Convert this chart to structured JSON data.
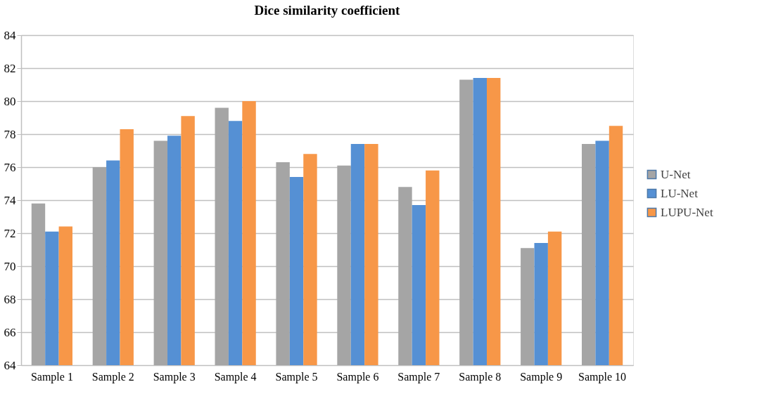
{
  "chart_data": {
    "type": "bar",
    "title": "Dice similarity coefficient",
    "categories": [
      "Sample 1",
      "Sample 2",
      "Sample 3",
      "Sample 4",
      "Sample 5",
      "Sample 6",
      "Sample 7",
      "Sample 8",
      "Sample 9",
      "Sample 10"
    ],
    "series": [
      {
        "name": "U-Net",
        "color": "#a5a5a5",
        "values": [
          73.8,
          76.0,
          77.6,
          79.6,
          76.3,
          76.1,
          74.8,
          81.3,
          71.1,
          77.4
        ]
      },
      {
        "name": "LU-Net",
        "color": "#5590d4",
        "values": [
          72.1,
          76.4,
          77.9,
          78.8,
          75.4,
          77.4,
          73.7,
          81.4,
          71.4,
          77.6
        ]
      },
      {
        "name": "LUPU-Net",
        "color": "#f79748",
        "values": [
          72.4,
          78.3,
          79.1,
          80.0,
          76.8,
          77.4,
          75.8,
          81.4,
          72.1,
          78.5
        ]
      }
    ],
    "ylim": [
      64,
      84
    ],
    "yticks": [
      64,
      66,
      68,
      70,
      72,
      74,
      76,
      78,
      80,
      82,
      84
    ],
    "grid": "y",
    "legend": "right"
  }
}
